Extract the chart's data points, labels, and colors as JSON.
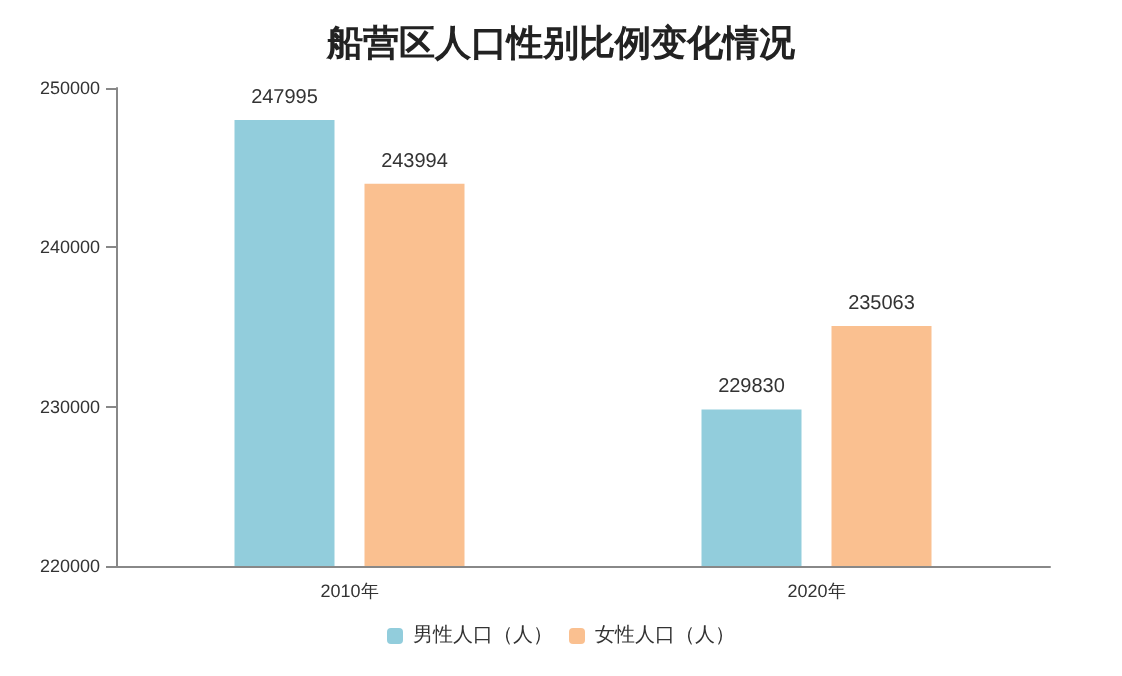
{
  "chart_data": {
    "type": "bar",
    "title": "船营区人口性别比例变化情况",
    "categories": [
      "2010年",
      "2020年"
    ],
    "series": [
      {
        "name": "男性人口（人）",
        "color": "#92cddc",
        "values": [
          247995,
          229830
        ]
      },
      {
        "name": "女性人口（人）",
        "color": "#fac090",
        "values": [
          243994,
          235063
        ]
      }
    ],
    "ylim": [
      220000,
      250000
    ],
    "yticks": [
      220000,
      230000,
      240000,
      250000
    ],
    "grid": false,
    "legend": "bottom",
    "data_labels": true
  }
}
